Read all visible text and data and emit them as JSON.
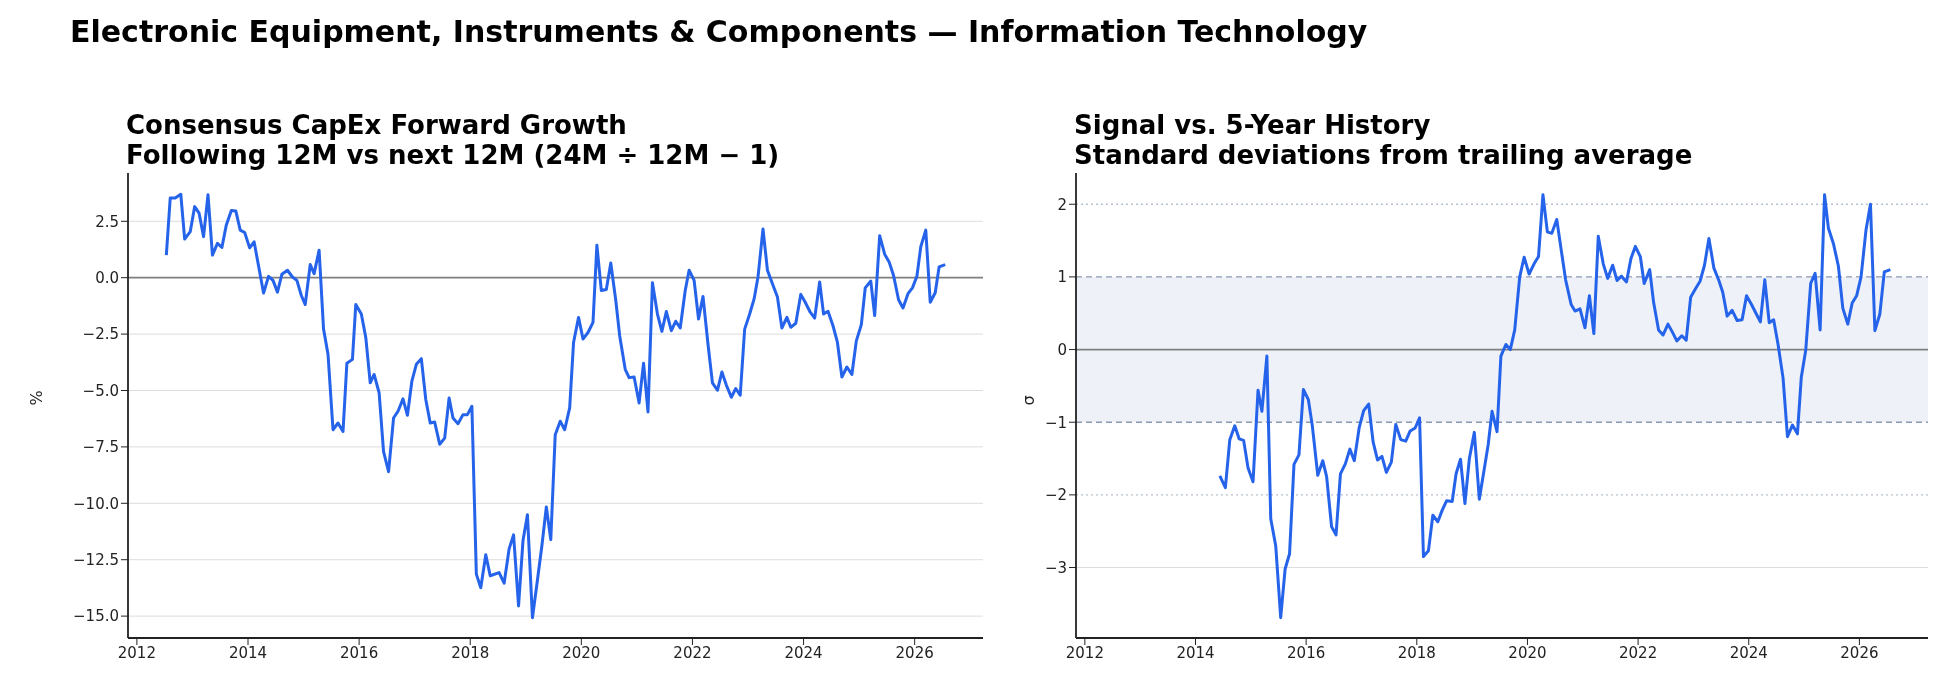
{
  "chart_data": [
    {
      "type": "line",
      "title": "Consensus CapEx Forward Growth",
      "subtitle": "Following 12M vs next 12M (24M ÷ 12M − 1)",
      "annotations": [
        "Electronic Equipment, Instruments & Components — Information Technology"
      ],
      "ylabel": "%",
      "x": [
        2012.53,
        2012.6,
        2012.69,
        2012.79,
        2012.86,
        2012.96,
        2013.04,
        2013.12,
        2013.2,
        2013.28,
        2013.36,
        2013.45,
        2013.53,
        2013.61,
        2013.7,
        2013.78,
        2013.86,
        2013.94,
        2014.03,
        2014.11,
        2014.28,
        2014.37,
        2014.45,
        2014.53,
        2014.61,
        2014.71,
        2014.8,
        2014.88,
        2014.96,
        2015.03,
        2015.12,
        2015.19,
        2015.28,
        2015.36,
        2015.44,
        2015.53,
        2015.62,
        2015.71,
        2015.78,
        2015.88,
        2015.94,
        2016.04,
        2016.12,
        2016.2,
        2016.27,
        2016.36,
        2016.44,
        2016.53,
        2016.62,
        2016.7,
        2016.79,
        2016.87,
        2016.95,
        2017.03,
        2017.12,
        2017.2,
        2017.28,
        2017.36,
        2017.45,
        2017.54,
        2017.62,
        2017.69,
        2017.78,
        2017.87,
        2017.95,
        2018.03,
        2018.11,
        2018.19,
        2018.28,
        2018.36,
        2018.52,
        2018.61,
        2018.7,
        2018.78,
        2018.87,
        2018.95,
        2019.03,
        2019.12,
        2019.2,
        2019.29,
        2019.37,
        2019.45,
        2019.53,
        2019.62,
        2019.7,
        2019.79,
        2019.86,
        2019.95,
        2020.03,
        2020.12,
        2020.21,
        2020.28,
        2020.36,
        2020.45,
        2020.53,
        2020.62,
        2020.69,
        2020.79,
        2020.86,
        2020.95,
        2021.04,
        2021.12,
        2021.2,
        2021.28,
        2021.37,
        2021.45,
        2021.53,
        2021.62,
        2021.7,
        2021.78,
        2021.87,
        2021.94,
        2022.03,
        2022.11,
        2022.19,
        2022.28,
        2022.36,
        2022.45,
        2022.53,
        2022.61,
        2022.7,
        2022.78,
        2022.86,
        2022.94,
        2023.03,
        2023.11,
        2023.18,
        2023.27,
        2023.35,
        2023.44,
        2023.53,
        2023.61,
        2023.7,
        2023.77,
        2023.86,
        2023.95,
        2024.03,
        2024.12,
        2024.2,
        2024.29,
        2024.36,
        2024.44,
        2024.53,
        2024.61,
        2024.69,
        2024.78,
        2024.87,
        2024.95,
        2025.04,
        2025.11,
        2025.21,
        2025.28,
        2025.37,
        2025.46,
        2025.54,
        2025.62,
        2025.71,
        2025.79,
        2025.88,
        2025.96,
        2026.04,
        2026.11,
        2026.2,
        2026.28,
        2026.37,
        2026.44,
        2026.55
      ],
      "series": [
        {
          "color": "#2563eb",
          "values": [
            1.0,
            3.53,
            3.53,
            3.7,
            1.71,
            2.04,
            3.15,
            2.86,
            1.82,
            3.68,
            1.0,
            1.52,
            1.34,
            2.34,
            2.98,
            2.96,
            2.11,
            2.0,
            1.32,
            1.59,
            -0.68,
            0.06,
            -0.12,
            -0.64,
            0.15,
            0.33,
            0.03,
            -0.12,
            -0.79,
            -1.19,
            0.58,
            0.18,
            1.22,
            -2.28,
            -3.39,
            -6.74,
            -6.44,
            -6.82,
            -3.79,
            -3.62,
            -1.19,
            -1.61,
            -2.65,
            -4.66,
            -4.29,
            -5.1,
            -7.71,
            -8.6,
            -6.22,
            -5.92,
            -5.37,
            -6.1,
            -4.58,
            -3.84,
            -3.59,
            -5.4,
            -6.44,
            -6.4,
            -7.38,
            -7.11,
            -5.33,
            -6.22,
            -6.47,
            -6.07,
            -6.07,
            -5.7,
            -13.14,
            -13.74,
            -12.28,
            -13.21,
            -13.07,
            -13.54,
            -12.02,
            -11.4,
            -14.55,
            -11.65,
            -10.51,
            -15.07,
            -13.59,
            -11.88,
            -10.16,
            -11.61,
            -6.96,
            -6.36,
            -6.74,
            -5.77,
            -2.87,
            -1.76,
            -2.72,
            -2.43,
            -1.98,
            1.44,
            -0.57,
            -0.52,
            0.65,
            -1.01,
            -2.57,
            -4.06,
            -4.43,
            -4.4,
            -5.55,
            -3.79,
            -5.95,
            -0.22,
            -1.61,
            -2.38,
            -1.5,
            -2.35,
            -1.93,
            -2.23,
            -0.57,
            0.33,
            -0.12,
            -1.83,
            -0.83,
            -2.95,
            -4.66,
            -4.99,
            -4.18,
            -4.76,
            -5.3,
            -4.91,
            -5.21,
            -2.28,
            -1.61,
            -0.94,
            0.03,
            2.16,
            0.33,
            -0.27,
            -0.86,
            -2.23,
            -1.76,
            -2.2,
            -2.02,
            -0.74,
            -1.09,
            -1.53,
            -1.79,
            -0.19,
            -1.61,
            -1.49,
            -2.13,
            -2.87,
            -4.4,
            -3.96,
            -4.29,
            -2.8,
            -2.08,
            -0.45,
            -0.15,
            -1.68,
            1.86,
            1.04,
            0.7,
            0.1,
            -0.98,
            -1.34,
            -0.71,
            -0.45,
            0.06,
            1.37,
            2.11,
            -1.09,
            -0.67,
            0.48,
            0.58
          ]
        }
      ],
      "xlim": [
        2011.84,
        2027.23
      ],
      "xticks": [
        2012,
        2014,
        2016,
        2018,
        2020,
        2022,
        2024,
        2026
      ],
      "ylim": [
        -15.97,
        4.64
      ],
      "yticks": [
        2.5,
        {
          "value": 0,
          "label": "0.0"
        },
        {
          "value": -2.5,
          "label": "−2.5"
        },
        {
          "value": -5,
          "label": "−5.0"
        },
        {
          "value": -7.5,
          "label": "−7.5"
        },
        {
          "value": -10,
          "label": "−10.0"
        },
        {
          "value": -12.5,
          "label": "−12.5"
        },
        {
          "value": -15,
          "label": "−15.0"
        }
      ],
      "grid": "y",
      "ref_lines": [
        {
          "axis": "y",
          "value": 0,
          "color": "#7f7f7f",
          "line_style": "solid"
        }
      ]
    },
    {
      "type": "line",
      "title": "Signal vs. 5-Year History",
      "subtitle": "Standard deviations from trailing average",
      "ylabel": "σ",
      "x": [
        2014.44,
        2014.54,
        2014.62,
        2014.71,
        2014.79,
        2014.87,
        2014.95,
        2015.04,
        2015.13,
        2015.2,
        2015.29,
        2015.36,
        2015.45,
        2015.54,
        2015.62,
        2015.7,
        2015.78,
        2015.87,
        2015.95,
        2016.04,
        2016.11,
        2016.21,
        2016.3,
        2016.37,
        2016.46,
        2016.54,
        2016.62,
        2016.71,
        2016.79,
        2016.87,
        2016.96,
        2017.04,
        2017.13,
        2017.21,
        2017.29,
        2017.37,
        2017.45,
        2017.54,
        2017.62,
        2017.71,
        2017.8,
        2017.88,
        2017.97,
        2018.05,
        2018.12,
        2018.21,
        2018.29,
        2018.38,
        2018.46,
        2018.54,
        2018.64,
        2018.71,
        2018.79,
        2018.87,
        2018.95,
        2019.04,
        2019.13,
        2019.22,
        2019.29,
        2019.36,
        2019.45,
        2019.52,
        2019.61,
        2019.69,
        2019.77,
        2019.86,
        2019.94,
        2020.03,
        2020.12,
        2020.2,
        2020.28,
        2020.36,
        2020.44,
        2020.53,
        2020.62,
        2020.69,
        2020.79,
        2020.86,
        2020.95,
        2021.04,
        2021.12,
        2021.2,
        2021.28,
        2021.37,
        2021.45,
        2021.54,
        2021.62,
        2021.7,
        2021.79,
        2021.87,
        2021.95,
        2022.04,
        2022.11,
        2022.21,
        2022.28,
        2022.37,
        2022.45,
        2022.54,
        2022.62,
        2022.7,
        2022.79,
        2022.87,
        2022.95,
        2023.04,
        2023.12,
        2023.2,
        2023.28,
        2023.37,
        2023.46,
        2023.53,
        2023.61,
        2023.7,
        2023.79,
        2023.88,
        2023.96,
        2024.05,
        2024.13,
        2024.21,
        2024.29,
        2024.37,
        2024.45,
        2024.53,
        2024.62,
        2024.7,
        2024.79,
        2024.88,
        2024.95,
        2025.03,
        2025.12,
        2025.2,
        2025.29,
        2025.37,
        2025.44,
        2025.53,
        2025.62,
        2025.7,
        2025.79,
        2025.87,
        2025.95,
        2026.03,
        2026.12,
        2026.2,
        2026.28,
        2026.37,
        2026.45,
        2026.56
      ],
      "series": [
        {
          "color": "#2563eb",
          "values": [
            -1.74,
            -1.9,
            -1.24,
            -1.05,
            -1.23,
            -1.25,
            -1.63,
            -1.82,
            -0.56,
            -0.85,
            -0.09,
            -2.33,
            -2.7,
            -3.69,
            -3.02,
            -2.81,
            -1.58,
            -1.45,
            -0.55,
            -0.69,
            -1.04,
            -1.73,
            -1.53,
            -1.75,
            -2.44,
            -2.55,
            -1.71,
            -1.57,
            -1.37,
            -1.53,
            -1.07,
            -0.84,
            -0.75,
            -1.27,
            -1.52,
            -1.47,
            -1.69,
            -1.55,
            -1.03,
            -1.24,
            -1.26,
            -1.12,
            -1.08,
            -0.94,
            -2.85,
            -2.77,
            -2.28,
            -2.37,
            -2.21,
            -2.08,
            -2.09,
            -1.71,
            -1.51,
            -2.12,
            -1.5,
            -1.14,
            -2.06,
            -1.64,
            -1.31,
            -0.85,
            -1.13,
            -0.09,
            0.07,
            0.0,
            0.27,
            1.0,
            1.27,
            1.04,
            1.18,
            1.28,
            2.13,
            1.62,
            1.6,
            1.79,
            1.32,
            0.96,
            0.62,
            0.53,
            0.56,
            0.3,
            0.74,
            0.22,
            1.56,
            1.18,
            0.98,
            1.16,
            0.95,
            1.01,
            0.93,
            1.25,
            1.42,
            1.28,
            0.91,
            1.1,
            0.65,
            0.27,
            0.2,
            0.35,
            0.24,
            0.12,
            0.19,
            0.13,
            0.72,
            0.84,
            0.94,
            1.16,
            1.53,
            1.12,
            0.95,
            0.79,
            0.46,
            0.54,
            0.4,
            0.41,
            0.74,
            0.62,
            0.5,
            0.38,
            0.96,
            0.37,
            0.41,
            0.07,
            -0.39,
            -1.2,
            -1.04,
            -1.16,
            -0.38,
            -0.01,
            0.91,
            1.05,
            0.27,
            2.13,
            1.67,
            1.46,
            1.15,
            0.57,
            0.35,
            0.64,
            0.74,
            1.0,
            1.65,
            2.0,
            0.26,
            0.49,
            1.07,
            1.1
          ]
        }
      ],
      "xlim": [
        2011.84,
        2027.24
      ],
      "xticks": [
        2012,
        2014,
        2016,
        2018,
        2020,
        2022,
        2024,
        2026
      ],
      "ylim": [
        -3.97,
        2.43
      ],
      "yticks": [
        2,
        1,
        0,
        {
          "value": -1,
          "label": "−1"
        },
        {
          "value": -2,
          "label": "−2"
        },
        {
          "value": -3,
          "label": "−3"
        }
      ],
      "bands": [
        {
          "axis": "y",
          "from": -1,
          "to": 1,
          "color": "#eef2f8"
        }
      ],
      "ref_lines": [
        {
          "axis": "y",
          "value": 0,
          "color": "#7f7f7f",
          "line_style": "solid"
        },
        {
          "axis": "y",
          "value": 1,
          "color": "#8a9ab2",
          "line_style": "dashed"
        },
        {
          "axis": "y",
          "value": -1,
          "color": "#8a9ab2",
          "line_style": "dashed"
        },
        {
          "axis": "y",
          "value": 2,
          "color": "#b8c2d2",
          "line_style": "dotted"
        },
        {
          "axis": "y",
          "value": -2,
          "color": "#b8c2d2",
          "line_style": "dotted"
        },
        {
          "axis": "y",
          "value": -3,
          "color": "#dddddd",
          "line_style": "solid"
        }
      ]
    }
  ]
}
